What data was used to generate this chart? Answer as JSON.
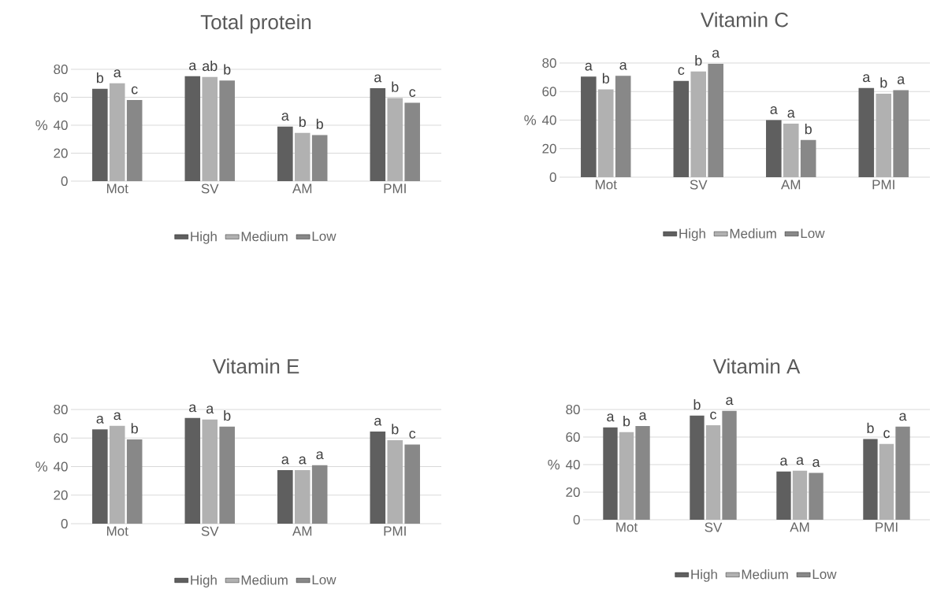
{
  "chart_data": [
    {
      "type": "bar",
      "title": "Total protein",
      "ylabel": "%",
      "categories": [
        "Mot",
        "SV",
        "AM",
        "PMI"
      ],
      "ylim": [
        0,
        80
      ],
      "yticks": [
        0,
        20,
        40,
        60,
        80
      ],
      "grid": "y",
      "legend": "bottom",
      "series": [
        {
          "name": "High",
          "color": "#5f5f5f",
          "values": [
            66,
            75,
            39,
            66.5
          ],
          "value_labels": [
            "b",
            "a",
            "a",
            "a"
          ]
        },
        {
          "name": "Medium",
          "color": "#b1b1b1",
          "values": [
            70,
            74.5,
            34.5,
            59.5
          ],
          "value_labels": [
            "a",
            "ab",
            "b",
            "b"
          ]
        },
        {
          "name": "Low",
          "color": "#888888",
          "values": [
            58,
            72,
            33,
            56
          ],
          "value_labels": [
            "c",
            "b",
            "b",
            "c"
          ]
        }
      ]
    },
    {
      "type": "bar",
      "title": "Vitamin C",
      "ylabel": "%",
      "categories": [
        "Mot",
        "SV",
        "AM",
        "PMI"
      ],
      "ylim": [
        0,
        80
      ],
      "yticks": [
        0,
        20,
        40,
        60,
        80
      ],
      "grid": "y",
      "legend": "bottom",
      "series": [
        {
          "name": "High",
          "color": "#5f5f5f",
          "values": [
            70.5,
            67.5,
            40,
            62.5
          ],
          "value_labels": [
            "a",
            "c",
            "a",
            "a"
          ]
        },
        {
          "name": "Medium",
          "color": "#b1b1b1",
          "values": [
            61.5,
            74,
            37.5,
            58.5
          ],
          "value_labels": [
            "b",
            "b",
            "a",
            "b"
          ]
        },
        {
          "name": "Low",
          "color": "#888888",
          "values": [
            71,
            79.5,
            26,
            61
          ],
          "value_labels": [
            "a",
            "a",
            "b",
            "a"
          ]
        }
      ]
    },
    {
      "type": "bar",
      "title": "Vitamin E",
      "ylabel": "%",
      "categories": [
        "Mot",
        "SV",
        "AM",
        "PMI"
      ],
      "ylim": [
        0,
        80
      ],
      "yticks": [
        0,
        20,
        40,
        60,
        80
      ],
      "grid": "y",
      "legend": "bottom",
      "series": [
        {
          "name": "High",
          "color": "#5f5f5f",
          "values": [
            66,
            74,
            37.5,
            64.5
          ],
          "value_labels": [
            "a",
            "a",
            "a",
            "a"
          ]
        },
        {
          "name": "Medium",
          "color": "#b1b1b1",
          "values": [
            68.5,
            73,
            37.5,
            58.5
          ],
          "value_labels": [
            "a",
            "a",
            "a",
            "b"
          ]
        },
        {
          "name": "Low",
          "color": "#888888",
          "values": [
            59,
            68,
            41,
            55.5
          ],
          "value_labels": [
            "b",
            "b",
            "a",
            "c"
          ]
        }
      ]
    },
    {
      "type": "bar",
      "title": "Vitamin A",
      "ylabel": "%",
      "categories": [
        "Mot",
        "SV",
        "AM",
        "PMI"
      ],
      "ylim": [
        0,
        80
      ],
      "yticks": [
        0,
        20,
        40,
        60,
        80
      ],
      "grid": "y",
      "legend": "bottom",
      "series": [
        {
          "name": "High",
          "color": "#5f5f5f",
          "values": [
            67,
            75.5,
            35,
            58.5
          ],
          "value_labels": [
            "a",
            "b",
            "a",
            "b"
          ]
        },
        {
          "name": "Medium",
          "color": "#b1b1b1",
          "values": [
            63.5,
            68.5,
            35.5,
            55
          ],
          "value_labels": [
            "b",
            "c",
            "a",
            "c"
          ]
        },
        {
          "name": "Low",
          "color": "#888888",
          "values": [
            68,
            79,
            34,
            67.5
          ],
          "value_labels": [
            "a",
            "a",
            "a",
            "a"
          ]
        }
      ]
    }
  ]
}
